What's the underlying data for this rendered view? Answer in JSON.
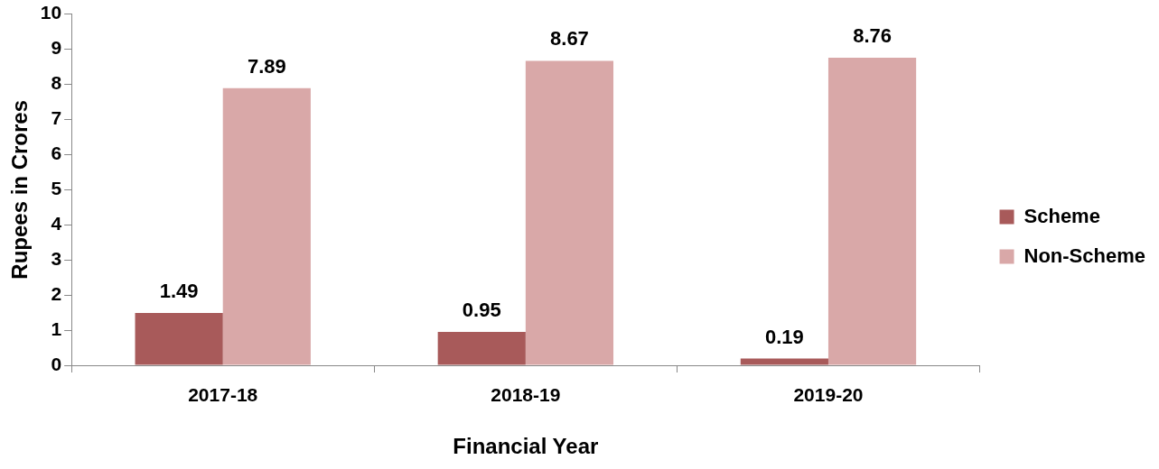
{
  "chart_data": {
    "type": "bar",
    "xlabel": "Financial Year",
    "ylabel": "Rupees in Crores",
    "categories": [
      "2017-18",
      "2018-19",
      "2019-20"
    ],
    "series": [
      {
        "name": "Scheme",
        "color": "#a85a5a",
        "values": [
          1.49,
          0.95,
          0.19
        ]
      },
      {
        "name": "Non-Scheme",
        "color": "#d9a8a8",
        "values": [
          7.89,
          8.67,
          8.76
        ]
      }
    ],
    "ylim": [
      0,
      10
    ],
    "yticks": [
      0,
      1,
      2,
      3,
      4,
      5,
      6,
      7,
      8,
      9,
      10
    ],
    "grid": false,
    "legend": "right",
    "data_labels": true
  }
}
